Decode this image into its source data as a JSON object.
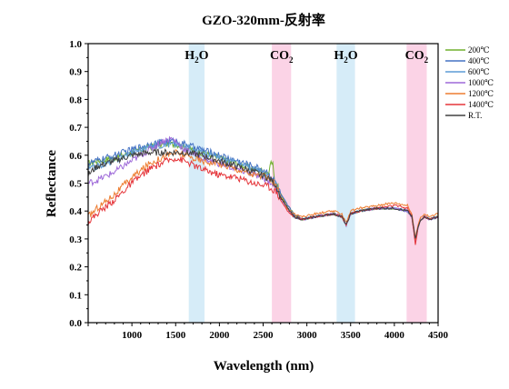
{
  "chart_data": {
    "type": "line",
    "title": "GZO-320mm-反射率",
    "xlabel": "Wavelength (nm)",
    "ylabel": "Reflectance",
    "xlim": [
      500,
      4500
    ],
    "ylim": [
      0.0,
      1.0
    ],
    "xticks": [
      1000,
      1500,
      2000,
      2500,
      3000,
      3500,
      4000,
      4500
    ],
    "xtick_labels": [
      "1000",
      "1500",
      "2000",
      "2500",
      "3000",
      "3500",
      "4000",
      "4500"
    ],
    "yticks": [
      0.0,
      0.1,
      0.2,
      0.3,
      0.4,
      0.5,
      0.6,
      0.7,
      0.8,
      0.9,
      1.0
    ],
    "ytick_labels": [
      "0.0",
      "0.1",
      "0.2",
      "0.3",
      "0.4",
      "0.5",
      "0.6",
      "0.7",
      "0.8",
      "0.9",
      "1.0"
    ],
    "legend_position": "top-right",
    "grid": false,
    "bands": [
      {
        "label_main": "H",
        "label_sub": "2",
        "label_tail": "O",
        "x_range": [
          1650,
          1830
        ],
        "color": "#d6ecf8"
      },
      {
        "label_main": "CO",
        "label_sub": "2",
        "label_tail": "",
        "x_range": [
          2600,
          2820
        ],
        "color": "#fbd3e6"
      },
      {
        "label_main": "H",
        "label_sub": "2",
        "label_tail": "O",
        "x_range": [
          3340,
          3550
        ],
        "color": "#d6ecf8"
      },
      {
        "label_main": "CO",
        "label_sub": "2",
        "label_tail": "",
        "x_range": [
          4140,
          4370
        ],
        "color": "#fbd3e6"
      }
    ],
    "series": [
      {
        "name": "200℃",
        "color": "#70b02e",
        "spike": true,
        "x": [
          500,
          600,
          800,
          1000,
          1200,
          1400,
          1500,
          1600,
          1800,
          2000,
          2200,
          2400,
          2550,
          2600,
          2620,
          2650,
          2700,
          2780,
          2850,
          2950,
          3100,
          3300,
          3400,
          3450,
          3500,
          3600,
          3800,
          4000,
          4150,
          4200,
          4240,
          4270,
          4300,
          4350,
          4400,
          4500
        ],
        "y": [
          0.57,
          0.58,
          0.59,
          0.61,
          0.63,
          0.64,
          0.64,
          0.63,
          0.61,
          0.59,
          0.57,
          0.55,
          0.54,
          0.52,
          0.53,
          0.5,
          0.46,
          0.42,
          0.39,
          0.37,
          0.38,
          0.39,
          0.38,
          0.35,
          0.39,
          0.4,
          0.41,
          0.41,
          0.4,
          0.38,
          0.29,
          0.34,
          0.37,
          0.38,
          0.37,
          0.38
        ]
      },
      {
        "name": "400℃",
        "color": "#4472c4",
        "spike": false,
        "x": [
          500,
          600,
          800,
          1000,
          1200,
          1400,
          1500,
          1600,
          1800,
          2000,
          2200,
          2400,
          2550,
          2600,
          2650,
          2700,
          2780,
          2850,
          2950,
          3100,
          3300,
          3400,
          3450,
          3500,
          3600,
          3800,
          4000,
          4150,
          4200,
          4240,
          4270,
          4300,
          4350,
          4400,
          4500
        ],
        "y": [
          0.57,
          0.58,
          0.6,
          0.62,
          0.64,
          0.65,
          0.65,
          0.64,
          0.62,
          0.6,
          0.58,
          0.56,
          0.54,
          0.52,
          0.5,
          0.46,
          0.42,
          0.39,
          0.37,
          0.38,
          0.39,
          0.38,
          0.35,
          0.39,
          0.4,
          0.41,
          0.41,
          0.4,
          0.38,
          0.29,
          0.34,
          0.37,
          0.38,
          0.37,
          0.38
        ]
      },
      {
        "name": "600℃",
        "color": "#5b9bd5",
        "spike": false,
        "x": [
          500,
          600,
          800,
          1000,
          1200,
          1400,
          1500,
          1600,
          1800,
          2000,
          2200,
          2400,
          2550,
          2600,
          2650,
          2700,
          2780,
          2850,
          2950,
          3100,
          3300,
          3400,
          3450,
          3500,
          3600,
          3800,
          4000,
          4150,
          4200,
          4240,
          4270,
          4300,
          4350,
          4400,
          4500
        ],
        "y": [
          0.55,
          0.56,
          0.58,
          0.61,
          0.63,
          0.64,
          0.64,
          0.63,
          0.61,
          0.59,
          0.57,
          0.55,
          0.53,
          0.51,
          0.49,
          0.45,
          0.41,
          0.38,
          0.37,
          0.38,
          0.39,
          0.38,
          0.35,
          0.39,
          0.4,
          0.41,
          0.41,
          0.4,
          0.38,
          0.29,
          0.34,
          0.37,
          0.38,
          0.37,
          0.38
        ]
      },
      {
        "name": "1000℃",
        "color": "#9e69d9",
        "spike": false,
        "x": [
          500,
          600,
          800,
          1000,
          1200,
          1350,
          1450,
          1500,
          1600,
          1800,
          2000,
          2200,
          2400,
          2550,
          2600,
          2650,
          2700,
          2780,
          2850,
          2950,
          3100,
          3300,
          3400,
          3450,
          3500,
          3600,
          3800,
          4000,
          4150,
          4200,
          4240,
          4270,
          4300,
          4350,
          4400,
          4500
        ],
        "y": [
          0.5,
          0.51,
          0.54,
          0.58,
          0.62,
          0.65,
          0.66,
          0.65,
          0.62,
          0.59,
          0.57,
          0.55,
          0.53,
          0.51,
          0.5,
          0.48,
          0.45,
          0.41,
          0.38,
          0.37,
          0.38,
          0.39,
          0.38,
          0.35,
          0.39,
          0.4,
          0.41,
          0.41,
          0.4,
          0.38,
          0.29,
          0.34,
          0.37,
          0.38,
          0.37,
          0.38
        ]
      },
      {
        "name": "1200℃",
        "color": "#ed7d31",
        "spike": false,
        "x": [
          500,
          600,
          800,
          1000,
          1200,
          1400,
          1500,
          1600,
          1800,
          2000,
          2200,
          2400,
          2550,
          2600,
          2650,
          2700,
          2780,
          2850,
          2950,
          3100,
          3300,
          3400,
          3450,
          3500,
          3600,
          3800,
          4000,
          4150,
          4200,
          4240,
          4270,
          4300,
          4350,
          4400,
          4500
        ],
        "y": [
          0.38,
          0.41,
          0.46,
          0.52,
          0.57,
          0.6,
          0.61,
          0.6,
          0.58,
          0.57,
          0.55,
          0.53,
          0.52,
          0.51,
          0.49,
          0.45,
          0.41,
          0.39,
          0.38,
          0.39,
          0.4,
          0.39,
          0.36,
          0.4,
          0.41,
          0.42,
          0.43,
          0.42,
          0.39,
          0.3,
          0.35,
          0.38,
          0.39,
          0.38,
          0.39
        ]
      },
      {
        "name": "1400℃",
        "color": "#e5353a",
        "spike": false,
        "x": [
          500,
          600,
          800,
          1000,
          1200,
          1400,
          1500,
          1600,
          1800,
          2000,
          2200,
          2400,
          2550,
          2600,
          2650,
          2700,
          2780,
          2850,
          2950,
          3100,
          3300,
          3400,
          3450,
          3500,
          3600,
          3800,
          4000,
          4150,
          4200,
          4240,
          4270,
          4300,
          4350,
          4400,
          4500
        ],
        "y": [
          0.36,
          0.39,
          0.44,
          0.5,
          0.55,
          0.58,
          0.59,
          0.58,
          0.55,
          0.53,
          0.52,
          0.5,
          0.49,
          0.48,
          0.47,
          0.44,
          0.4,
          0.38,
          0.37,
          0.38,
          0.39,
          0.38,
          0.35,
          0.39,
          0.4,
          0.41,
          0.42,
          0.41,
          0.38,
          0.28,
          0.34,
          0.37,
          0.38,
          0.37,
          0.38
        ]
      },
      {
        "name": "R.T.",
        "color": "#404040",
        "spike": false,
        "x": [
          500,
          600,
          800,
          1000,
          1200,
          1400,
          1500,
          1600,
          1800,
          2000,
          2200,
          2400,
          2550,
          2600,
          2650,
          2700,
          2780,
          2850,
          2950,
          3100,
          3300,
          3400,
          3450,
          3500,
          3600,
          3800,
          4000,
          4150,
          4200,
          4240,
          4270,
          4300,
          4350,
          4400,
          4500
        ],
        "y": [
          0.53,
          0.56,
          0.58,
          0.6,
          0.61,
          0.61,
          0.61,
          0.61,
          0.6,
          0.58,
          0.56,
          0.54,
          0.52,
          0.51,
          0.49,
          0.45,
          0.41,
          0.38,
          0.37,
          0.38,
          0.39,
          0.38,
          0.35,
          0.39,
          0.4,
          0.41,
          0.41,
          0.4,
          0.38,
          0.3,
          0.34,
          0.37,
          0.38,
          0.37,
          0.38
        ]
      }
    ]
  }
}
